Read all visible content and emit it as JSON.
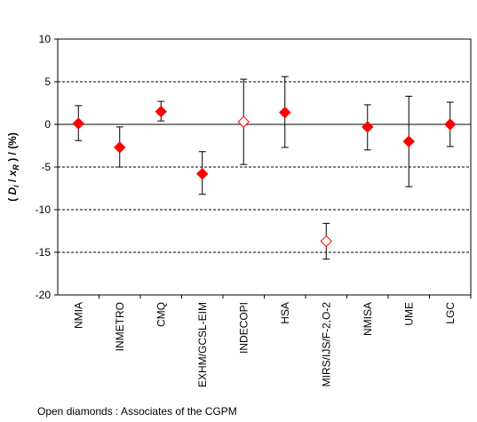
{
  "chart_data": {
    "type": "scatter",
    "xlabel": "",
    "ylabel": {
      "prefix": "( ",
      "D": "D",
      "i": "i",
      "slash1": " / ",
      "x": "x",
      "R": "R",
      "rest": " )  / (%)"
    },
    "ylim": [
      -20,
      10
    ],
    "yticks": [
      10,
      5,
      0,
      -5,
      -10,
      -15,
      -20
    ],
    "grid": "dashed horizontal at multiples of 5, solid line at 0",
    "categories": [
      "NMIA",
      "INMETRO",
      "CMQ",
      "EXHM/GCSL-EIM",
      "INDECOPI",
      "HSA",
      "MIRS/IJS/F-2,O-2",
      "NMISA",
      "UME",
      "LGC"
    ],
    "points": [
      {
        "lab": "NMIA",
        "value": 0.1,
        "err_low": 2.0,
        "err_high": 2.1,
        "marker": "filled"
      },
      {
        "lab": "INMETRO",
        "value": -2.7,
        "err_low": 2.3,
        "err_high": 2.4,
        "marker": "filled"
      },
      {
        "lab": "CMQ",
        "value": 1.5,
        "err_low": 1.1,
        "err_high": 1.2,
        "marker": "filled"
      },
      {
        "lab": "EXHM/GCSL-EIM",
        "value": -5.8,
        "err_low": 2.4,
        "err_high": 2.6,
        "marker": "filled"
      },
      {
        "lab": "INDECOPI",
        "value": 0.3,
        "err_low": 5.0,
        "err_high": 5.0,
        "marker": "open"
      },
      {
        "lab": "HSA",
        "value": 1.4,
        "err_low": 4.1,
        "err_high": 4.2,
        "marker": "filled"
      },
      {
        "lab": "MIRS/IJS/F-2,O-2",
        "value": -13.7,
        "err_low": 2.1,
        "err_high": 2.1,
        "marker": "open"
      },
      {
        "lab": "NMISA",
        "value": -0.3,
        "err_low": 2.7,
        "err_high": 2.6,
        "marker": "filled"
      },
      {
        "lab": "UME",
        "value": -2.0,
        "err_low": 5.3,
        "err_high": 5.3,
        "marker": "filled"
      },
      {
        "lab": "LGC",
        "value": 0.0,
        "err_low": 2.6,
        "err_high": 2.6,
        "marker": "filled"
      }
    ],
    "marker_color": "#ff0000",
    "footnote": "Open diamonds : Associates of the CGPM"
  }
}
